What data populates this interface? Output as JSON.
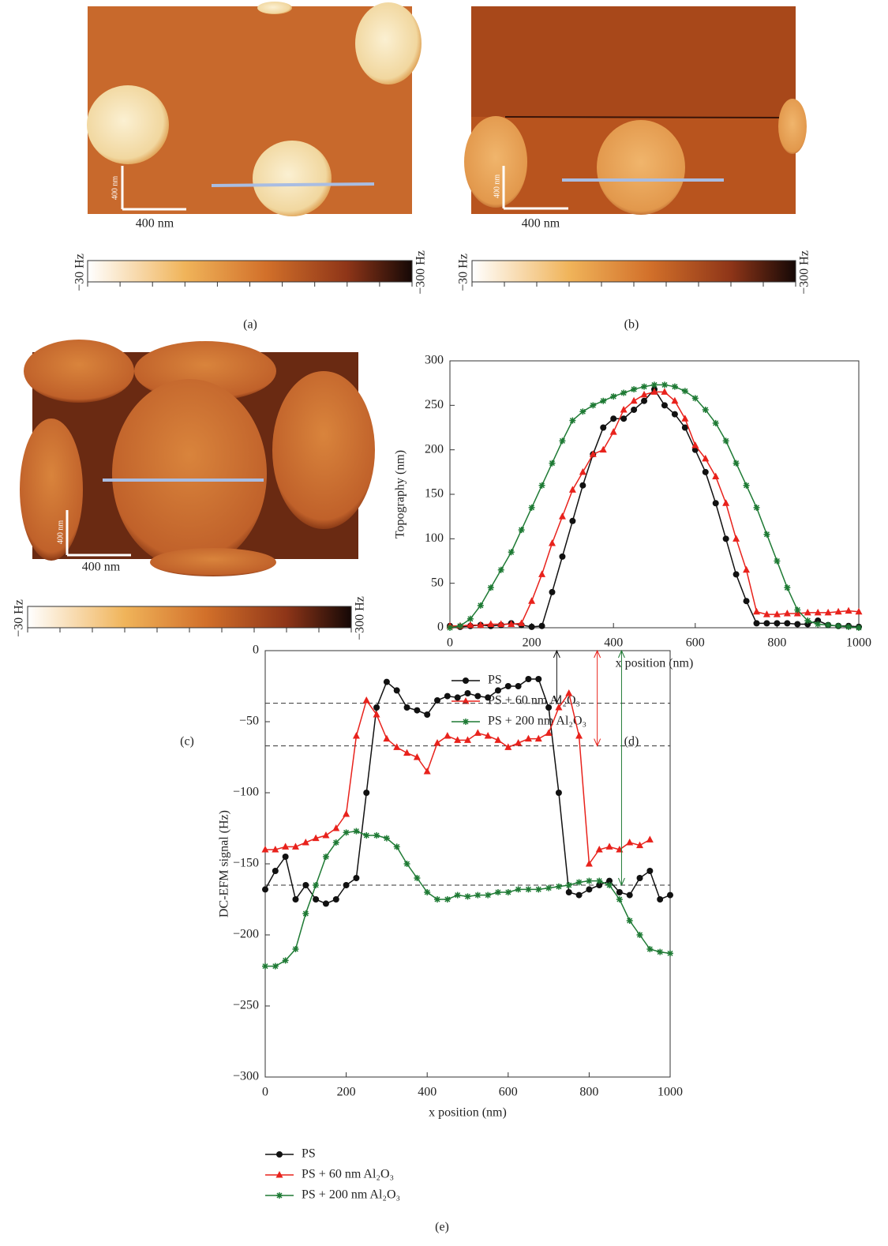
{
  "images": [
    {
      "label": "(a)",
      "scale_bar": "400 nm",
      "scale_bar_vertical": "400 nm",
      "colorbar_min": "−30 Hz",
      "colorbar_max": "−300 Hz"
    },
    {
      "label": "(b)",
      "scale_bar": "400 nm",
      "scale_bar_vertical": "400 nm",
      "colorbar_min": "−30 Hz",
      "colorbar_max": "−300 Hz"
    },
    {
      "label": "(c)",
      "scale_bar": "400 nm",
      "scale_bar_vertical": "400 nm",
      "colorbar_min": "−30 Hz",
      "colorbar_max": "−300 Hz"
    }
  ],
  "chart_data": [
    {
      "type": "line",
      "label": "(d)",
      "x_label": "x position (nm)",
      "y_label": "Topography (nm)",
      "xlim": [
        0,
        1000
      ],
      "ylim": [
        0,
        300
      ],
      "xticks": [
        0,
        200,
        400,
        600,
        800,
        1000
      ],
      "yticks": [
        0,
        50,
        100,
        150,
        200,
        250,
        300
      ],
      "legend": "below",
      "x": [
        0,
        25,
        50,
        75,
        100,
        125,
        150,
        175,
        200,
        225,
        250,
        275,
        300,
        325,
        350,
        375,
        400,
        425,
        450,
        475,
        500,
        525,
        550,
        575,
        600,
        625,
        650,
        675,
        700,
        725,
        750,
        775,
        800,
        825,
        850,
        875,
        900,
        925,
        950,
        975,
        1000
      ],
      "series": [
        {
          "name": "PS",
          "color": "#111111",
          "marker": "circle",
          "values": [
            2,
            1,
            2,
            3,
            2,
            3,
            5,
            3,
            1,
            2,
            40,
            80,
            120,
            160,
            195,
            225,
            235,
            235,
            245,
            255,
            268,
            250,
            240,
            225,
            200,
            175,
            140,
            100,
            60,
            30,
            5,
            5,
            5,
            5,
            4,
            4,
            8,
            3,
            2,
            2,
            1
          ]
        },
        {
          "name": "PS + 60 nm Al₂O₃",
          "color": "#e8221c",
          "marker": "triangle",
          "values": [
            2,
            2,
            3,
            3,
            4,
            4,
            4,
            5,
            30,
            60,
            95,
            125,
            155,
            175,
            195,
            200,
            220,
            245,
            255,
            262,
            265,
            265,
            255,
            235,
            205,
            190,
            170,
            140,
            100,
            65,
            18,
            15,
            15,
            16,
            16,
            17,
            17,
            17,
            18,
            19,
            18
          ]
        },
        {
          "name": "PS + 200 nm Al₂O₃",
          "color": "#1e7a34",
          "marker": "star",
          "values": [
            0,
            2,
            10,
            25,
            45,
            65,
            85,
            110,
            135,
            160,
            185,
            210,
            233,
            243,
            250,
            255,
            260,
            264,
            268,
            271,
            273,
            273,
            271,
            266,
            258,
            245,
            230,
            210,
            185,
            160,
            135,
            105,
            75,
            45,
            20,
            8,
            4,
            3,
            2,
            1,
            0
          ]
        }
      ]
    },
    {
      "type": "line",
      "label": "(e)",
      "x_label": "x position (nm)",
      "y_label": "DC-EFM signal (Hz)",
      "xlim": [
        0,
        1000
      ],
      "ylim": [
        -300,
        0
      ],
      "xticks": [
        0,
        200,
        400,
        600,
        800,
        1000
      ],
      "yticks": [
        {
          "value": -300,
          "label": "−300"
        },
        {
          "value": -250,
          "label": "−250"
        },
        {
          "value": -200,
          "label": "−200"
        },
        {
          "value": -150,
          "label": "−150"
        },
        {
          "value": -100,
          "label": "−100"
        },
        {
          "value": -50,
          "label": "−50"
        },
        0
      ],
      "legend": "below",
      "hlines": [
        -37,
        -67,
        -165
      ],
      "arrows": [
        {
          "x": 720,
          "y": -37,
          "color": "#111111"
        },
        {
          "x": 820,
          "y": -67,
          "color": "#e8221c"
        },
        {
          "x": 880,
          "y": -165,
          "color": "#1e7a34"
        }
      ],
      "x": [
        0,
        25,
        50,
        75,
        100,
        125,
        150,
        175,
        200,
        225,
        250,
        275,
        300,
        325,
        350,
        375,
        400,
        425,
        450,
        475,
        500,
        525,
        550,
        575,
        600,
        625,
        650,
        675,
        700,
        725,
        750,
        775,
        800,
        825,
        850,
        875,
        900,
        925,
        950,
        975,
        1000
      ],
      "series": [
        {
          "name": "PS",
          "color": "#111111",
          "marker": "circle",
          "values": [
            -168,
            -155,
            -145,
            -175,
            -165,
            -175,
            -178,
            -175,
            -165,
            -160,
            -100,
            -40,
            -22,
            -28,
            -40,
            -42,
            -45,
            -35,
            -32,
            -33,
            -30,
            -32,
            -33,
            -28,
            -25,
            -25,
            -20,
            -20,
            -40,
            -100,
            -170,
            -172,
            -168,
            -165,
            -162,
            -170,
            -172,
            -160,
            -155,
            -175,
            -172
          ]
        },
        {
          "name": "PS + 60 nm Al₂O₃",
          "color": "#e8221c",
          "marker": "triangle",
          "values": [
            -140,
            -140,
            -138,
            -138,
            -135,
            -132,
            -130,
            -125,
            -115,
            -60,
            -35,
            -45,
            -62,
            -68,
            -72,
            -75,
            -85,
            -65,
            -60,
            -63,
            -63,
            -58,
            -60,
            -63,
            -68,
            -65,
            -62,
            -62,
            -58,
            -40,
            -30,
            -60,
            -150,
            -140,
            -138,
            -140,
            -135,
            -137,
            -133,
            null,
            null
          ]
        },
        {
          "name": "PS + 200 nm Al₂O₃",
          "color": "#1e7a34",
          "marker": "star",
          "values": [
            -222,
            -222,
            -218,
            -210,
            -185,
            -165,
            -145,
            -135,
            -128,
            -127,
            -130,
            -130,
            -132,
            -138,
            -150,
            -160,
            -170,
            -175,
            -175,
            -172,
            -173,
            -172,
            -172,
            -170,
            -170,
            -168,
            -168,
            -168,
            -167,
            -166,
            -165,
            -163,
            -162,
            -162,
            -165,
            -175,
            -190,
            -200,
            -210,
            -212,
            -213
          ]
        }
      ]
    }
  ]
}
